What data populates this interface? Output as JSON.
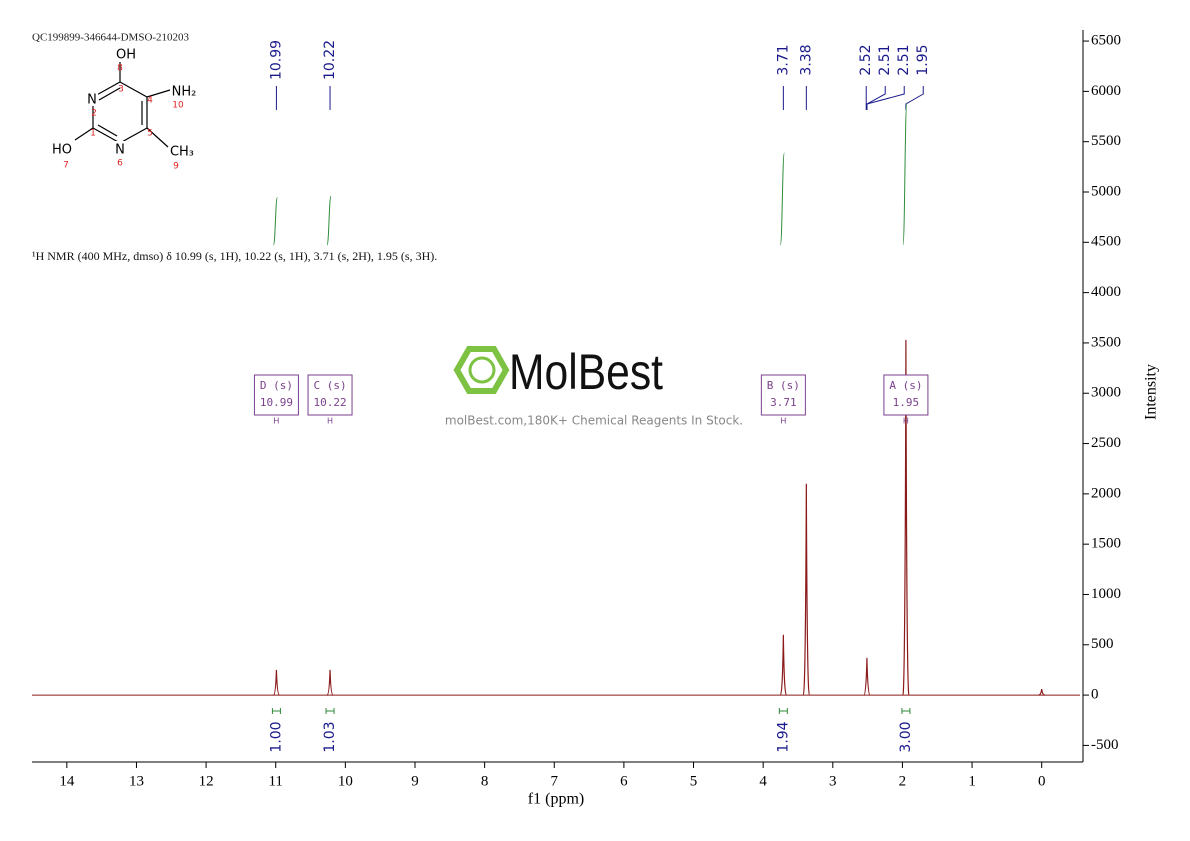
{
  "header": {
    "sample_id": "QC199899-346644-DMSO-210203",
    "description": "¹H NMR (400 MHz, dmso) δ 10.99 (s, 1H), 10.22 (s, 1H), 3.71 (s, 2H), 1.95 (s, 3H)."
  },
  "structure": {
    "atoms": [
      "OH",
      "N",
      "HO",
      "N",
      "NH₂",
      "CH₃"
    ],
    "numbers": [
      "8",
      "3",
      "4",
      "10",
      "2",
      "1",
      "5",
      "7",
      "6",
      "9"
    ]
  },
  "watermark": {
    "logo": "MolBest",
    "tagline": "molBest.com,180K+ Chemical Reagents In Stock."
  },
  "chart_data": {
    "type": "nmr",
    "x_label": "f1 (ppm)",
    "y_label": "Intensity",
    "xlim": [
      14.5,
      -0.55
    ],
    "ylim": [
      -665,
      6610
    ],
    "xticks": [
      14,
      13,
      12,
      11,
      10,
      9,
      8,
      7,
      6,
      5,
      4,
      3,
      2,
      1,
      0
    ],
    "yticks": [
      -500,
      0,
      500,
      1000,
      1500,
      2000,
      2500,
      3000,
      3500,
      4000,
      4500,
      5000,
      5500,
      6000,
      6500
    ],
    "color": "#8b1a1a",
    "peaks": {
      "x": [
        10.99,
        10.22,
        3.71,
        3.38,
        2.51,
        1.95,
        0
      ],
      "values": [
        250,
        250,
        600,
        2100,
        370,
        3530,
        60
      ]
    },
    "peak_labels": [
      10.99,
      10.22,
      3.71,
      3.38,
      2.52,
      2.51,
      2.51,
      1.95
    ],
    "multiplets": {
      "names": [
        "D (s)",
        "C (s)",
        "B (s)",
        "A (s)"
      ],
      "shifts": [
        10.99,
        10.22,
        3.71,
        1.95
      ],
      "nuclei": [
        "H",
        "H",
        "H",
        "H"
      ],
      "integrals": [
        1,
        1.03,
        1.94,
        3
      ],
      "integral_labels": [
        "1.00",
        "1.03",
        "1.94",
        "3.00"
      ]
    }
  }
}
